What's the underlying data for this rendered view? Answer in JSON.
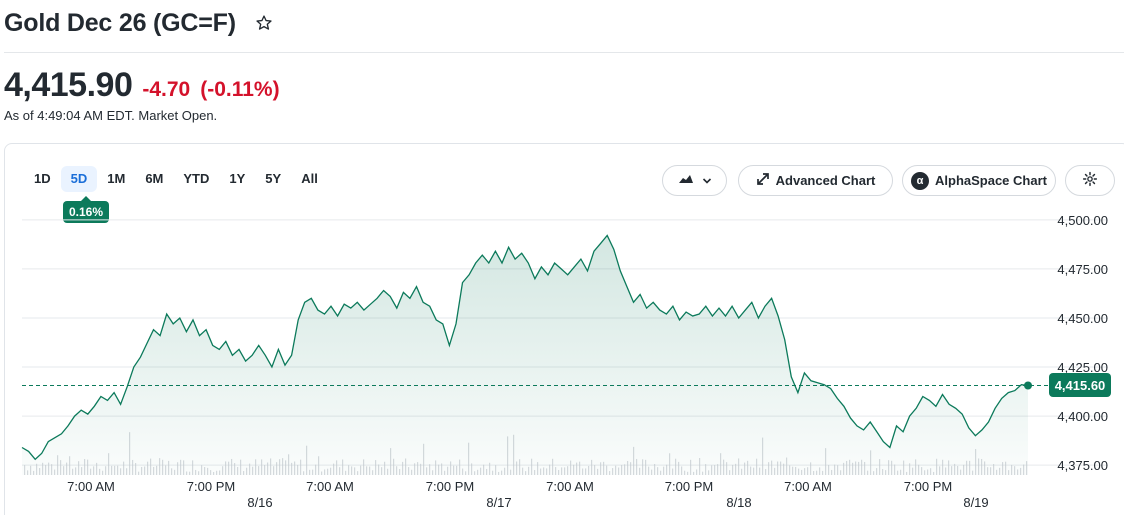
{
  "header": {
    "title": "Gold Dec 26 (GC=F)",
    "star_icon": "star-icon"
  },
  "quote": {
    "price": "4,415.90",
    "change": "-4.70",
    "change_pct": "(-0.11%)",
    "as_of": "As of 4:49:04 AM EDT. Market Open.",
    "change_color": "#d4122b"
  },
  "toolbar": {
    "ranges": [
      "1D",
      "5D",
      "1M",
      "6M",
      "YTD",
      "1Y",
      "5Y",
      "All"
    ],
    "active_range": "5D",
    "performance_badge": "0.16%",
    "chart_type_icon": "mountain-chart-icon",
    "advanced_chart_label": "Advanced Chart",
    "alphaspace_label": "AlphaSpace Chart",
    "settings_icon": "gear-icon"
  },
  "chart_data": {
    "type": "area",
    "current_value_label": "4,415.60",
    "current_value": 4415.6,
    "ylim": [
      4370,
      4505
    ],
    "y_ticks": [
      "4,500.00",
      "4,475.00",
      "4,450.00",
      "4,425.00",
      "4,400.00",
      "4,375.00"
    ],
    "y_tick_values": [
      4500,
      4475,
      4450,
      4425,
      4400,
      4375
    ],
    "x_ticks": [
      "7:00 AM",
      "7:00 PM",
      "7:00 AM",
      "7:00 PM",
      "7:00 AM",
      "7:00 PM",
      "7:00 AM",
      "7:00 PM"
    ],
    "date_labels": [
      "8/16",
      "8/17",
      "8/18",
      "8/19"
    ],
    "grid": true,
    "line_color": "#0c7a5b",
    "series": [
      {
        "values": [
          4384,
          4382,
          4378,
          4381,
          4387,
          4389,
          4391,
          4395,
          4400,
          4403,
          4401,
          4405,
          4410,
          4408,
          4412,
          4406,
          4415,
          4425,
          4430,
          4437,
          4444,
          4441,
          4452,
          4447,
          4450,
          4443,
          4449,
          4441,
          4444,
          4436,
          4434,
          4438,
          4431,
          4434,
          4428,
          4431,
          4436,
          4431,
          4425,
          4434,
          4426,
          4431,
          4449,
          4458,
          4460,
          4454,
          4452,
          4456,
          4451,
          4457,
          4455,
          4458,
          4454,
          4457,
          4460,
          4464,
          4461,
          4455,
          4463,
          4460,
          4466,
          4458,
          4456,
          4449,
          4447,
          4436,
          4447,
          4468,
          4472,
          4478,
          4482,
          4478,
          4484,
          4478,
          4486,
          4480,
          4483,
          4478,
          4470,
          4476,
          4472,
          4478,
          4475,
          4472,
          4476,
          4480,
          4474,
          4484,
          4488,
          4492,
          4485,
          4474,
          4466,
          4458,
          4462,
          4455,
          4458,
          4454,
          4452,
          4456,
          4449,
          4453,
          4451,
          4452,
          4456,
          4451,
          4455,
          4451,
          4456,
          4450,
          4454,
          4458,
          4450,
          4456,
          4460,
          4451,
          4439,
          4420,
          4412,
          4422,
          4418,
          4417,
          4416,
          4414,
          4409,
          4405,
          4399,
          4395,
          4393,
          4397,
          4392,
          4387,
          4384,
          4395,
          4392,
          4400,
          4404,
          4410,
          4408,
          4405,
          4411,
          4406,
          4404,
          4401,
          4394,
          4390,
          4393,
          4397,
          4404,
          4409,
          4412,
          4413,
          4416,
          4415.6
        ]
      }
    ]
  }
}
